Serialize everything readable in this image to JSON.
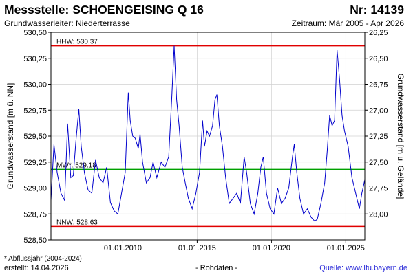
{
  "header": {
    "title": "Messstelle: SCHOENGEISING Q 16",
    "station_no": "Nr: 14139",
    "aquifer": "Grundwasserleiter:   Niederterrasse",
    "period": "Zeitraum: Mär 2005 - Apr 2026"
  },
  "footer": {
    "note": "* Abflussjahr (2004-2024)",
    "created": "erstellt:  14.04.2026",
    "data_kind": "- Rohdaten -",
    "source": "Quelle: www.lfu.bayern.de"
  },
  "chart_data": {
    "type": "line",
    "ylabel": "Grundwasserstand [m ü. NN]",
    "ylabel_right": "Grundwasserstand [m u. Gelände]",
    "ylim": [
      528.5,
      530.5
    ],
    "yticks": [
      "528,50",
      "528,75",
      "529,00",
      "529,25",
      "529,50",
      "529,75",
      "530,00",
      "530,25",
      "530,50"
    ],
    "yticks_right": [
      "26,25",
      "26,50",
      "26,75",
      "27,00",
      "27,25",
      "27,50",
      "27,75",
      "28,00"
    ],
    "right_axis_ground_level": 556.75,
    "xlim": [
      "2005-03-01",
      "2026-04-14"
    ],
    "xticks": [
      "01.01.2010",
      "01.01.2015",
      "01.01.2020",
      "01.01.2025"
    ],
    "colors": {
      "series": "#0000cc",
      "extreme": "#e00000",
      "mean": "#00a000",
      "grid": "#d0d0d0"
    },
    "reference_lines": [
      {
        "label": "HHW: 530.37",
        "value": 530.37,
        "color": "#e00000"
      },
      {
        "label": "MW*: 529.18",
        "value": 529.18,
        "color": "#00a000"
      },
      {
        "label": "NNW: 528.63",
        "value": 528.63,
        "color": "#e00000"
      }
    ],
    "series": [
      {
        "points": [
          [
            "2005-03-01",
            528.88
          ],
          [
            "2005-05-15",
            529.42
          ],
          [
            "2005-08-01",
            529.15
          ],
          [
            "2005-11-01",
            528.95
          ],
          [
            "2006-02-01",
            528.88
          ],
          [
            "2006-04-15",
            529.62
          ],
          [
            "2006-07-01",
            529.1
          ],
          [
            "2006-09-01",
            529.12
          ],
          [
            "2006-11-01",
            529.44
          ],
          [
            "2007-01-15",
            529.76
          ],
          [
            "2007-03-15",
            529.4
          ],
          [
            "2007-06-01",
            529.15
          ],
          [
            "2007-09-01",
            528.98
          ],
          [
            "2007-12-01",
            528.95
          ],
          [
            "2008-03-01",
            529.27
          ],
          [
            "2008-06-01",
            529.1
          ],
          [
            "2008-09-01",
            529.05
          ],
          [
            "2008-12-01",
            529.2
          ],
          [
            "2009-03-01",
            528.86
          ],
          [
            "2009-06-01",
            528.78
          ],
          [
            "2009-09-01",
            528.75
          ],
          [
            "2009-12-01",
            528.95
          ],
          [
            "2010-03-01",
            529.15
          ],
          [
            "2010-05-15",
            529.92
          ],
          [
            "2010-07-01",
            529.65
          ],
          [
            "2010-09-01",
            529.5
          ],
          [
            "2010-11-01",
            529.48
          ],
          [
            "2011-01-15",
            529.38
          ],
          [
            "2011-03-01",
            529.52
          ],
          [
            "2011-05-01",
            529.25
          ],
          [
            "2011-08-01",
            529.05
          ],
          [
            "2011-11-01",
            529.1
          ],
          [
            "2012-01-15",
            529.25
          ],
          [
            "2012-04-15",
            529.1
          ],
          [
            "2012-08-01",
            529.25
          ],
          [
            "2012-11-01",
            529.2
          ],
          [
            "2013-02-01",
            529.3
          ],
          [
            "2013-04-15",
            529.85
          ],
          [
            "2013-06-15",
            530.37
          ],
          [
            "2013-08-15",
            529.85
          ],
          [
            "2013-10-15",
            529.6
          ],
          [
            "2014-01-01",
            529.2
          ],
          [
            "2014-03-15",
            529.05
          ],
          [
            "2014-06-01",
            528.9
          ],
          [
            "2014-09-01",
            528.8
          ],
          [
            "2014-12-01",
            528.95
          ],
          [
            "2015-03-01",
            529.15
          ],
          [
            "2015-05-15",
            529.65
          ],
          [
            "2015-07-01",
            529.4
          ],
          [
            "2015-09-01",
            529.55
          ],
          [
            "2015-11-01",
            529.5
          ],
          [
            "2016-01-15",
            529.6
          ],
          [
            "2016-03-15",
            529.85
          ],
          [
            "2016-05-01",
            529.9
          ],
          [
            "2016-07-01",
            529.6
          ],
          [
            "2016-09-15",
            529.4
          ],
          [
            "2016-12-01",
            529.1
          ],
          [
            "2017-03-01",
            528.85
          ],
          [
            "2017-06-01",
            528.9
          ],
          [
            "2017-09-01",
            528.95
          ],
          [
            "2017-12-01",
            528.85
          ],
          [
            "2018-03-01",
            529.3
          ],
          [
            "2018-05-01",
            529.15
          ],
          [
            "2018-08-01",
            528.85
          ],
          [
            "2018-11-01",
            528.75
          ],
          [
            "2019-02-01",
            528.95
          ],
          [
            "2019-04-15",
            529.2
          ],
          [
            "2019-06-15",
            529.3
          ],
          [
            "2019-09-01",
            528.95
          ],
          [
            "2019-12-01",
            528.8
          ],
          [
            "2020-03-01",
            528.75
          ],
          [
            "2020-06-01",
            529.0
          ],
          [
            "2020-09-01",
            528.85
          ],
          [
            "2020-12-01",
            528.9
          ],
          [
            "2021-03-01",
            529.0
          ],
          [
            "2021-06-01",
            529.3
          ],
          [
            "2021-07-15",
            529.42
          ],
          [
            "2021-09-15",
            529.15
          ],
          [
            "2021-12-01",
            528.9
          ],
          [
            "2022-03-01",
            528.75
          ],
          [
            "2022-06-01",
            528.8
          ],
          [
            "2022-09-01",
            528.72
          ],
          [
            "2022-12-01",
            528.68
          ],
          [
            "2023-02-01",
            528.7
          ],
          [
            "2023-05-01",
            528.85
          ],
          [
            "2023-08-01",
            529.05
          ],
          [
            "2023-10-01",
            529.35
          ],
          [
            "2023-12-01",
            529.7
          ],
          [
            "2024-02-01",
            529.6
          ],
          [
            "2024-04-01",
            529.65
          ],
          [
            "2024-06-01",
            530.33
          ],
          [
            "2024-08-01",
            530.05
          ],
          [
            "2024-10-01",
            529.7
          ],
          [
            "2024-12-01",
            529.55
          ],
          [
            "2025-03-01",
            529.4
          ],
          [
            "2025-06-01",
            529.1
          ],
          [
            "2025-09-01",
            528.95
          ],
          [
            "2025-12-01",
            528.8
          ],
          [
            "2026-02-01",
            528.95
          ],
          [
            "2026-04-14",
            529.08
          ]
        ]
      }
    ]
  }
}
